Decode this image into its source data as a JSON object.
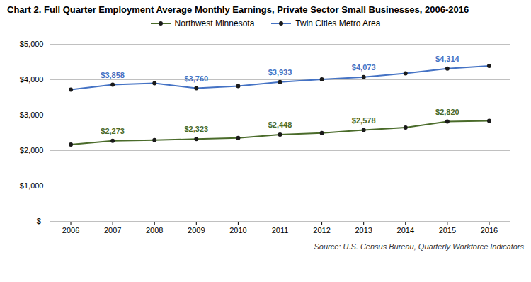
{
  "chart_data": {
    "type": "line",
    "title": "Chart 2. Full Quarter Employment Average Monthly Earnings, Private Sector Small Businesses, 2006-2016",
    "source": "Source: U.S. Census Bureau, Quarterly Workforce Indicators",
    "x": [
      2006,
      2007,
      2008,
      2009,
      2010,
      2011,
      2012,
      2013,
      2014,
      2015,
      2016
    ],
    "series": [
      {
        "name": "Northwest Minnesota",
        "color": "#4a6b2a",
        "marker": "circle",
        "values": [
          2171,
          2273,
          2294,
          2323,
          2355,
          2448,
          2496,
          2578,
          2652,
          2820,
          2842
        ],
        "value_labels": [
          null,
          "$2,273",
          null,
          "$2,323",
          null,
          "$2,448",
          null,
          "$2,578",
          null,
          "$2,820",
          null
        ]
      },
      {
        "name": "Twin Cities Metro Area",
        "color": "#4472c4",
        "marker": "circle",
        "values": [
          3720,
          3858,
          3900,
          3760,
          3820,
          3933,
          4010,
          4073,
          4180,
          4314,
          4390
        ],
        "value_labels": [
          null,
          "$3,858",
          null,
          "$3,760",
          null,
          "$3,933",
          null,
          "$4,073",
          null,
          "$4,314",
          null
        ]
      }
    ],
    "xlim": [
      2005.5,
      2016.5
    ],
    "xticks": [
      2006,
      2007,
      2008,
      2009,
      2010,
      2011,
      2012,
      2013,
      2014,
      2015,
      2016
    ],
    "ylim": [
      0,
      5000
    ],
    "yticks": [
      {
        "value": 0,
        "label": "$-"
      },
      {
        "value": 1000,
        "label": "$1,000"
      },
      {
        "value": 2000,
        "label": "$2,000"
      },
      {
        "value": 3000,
        "label": "$3,000"
      },
      {
        "value": 4000,
        "label": "$4,000"
      },
      {
        "value": 5000,
        "label": "$5,000"
      }
    ],
    "grid": "y",
    "legend": "top"
  }
}
